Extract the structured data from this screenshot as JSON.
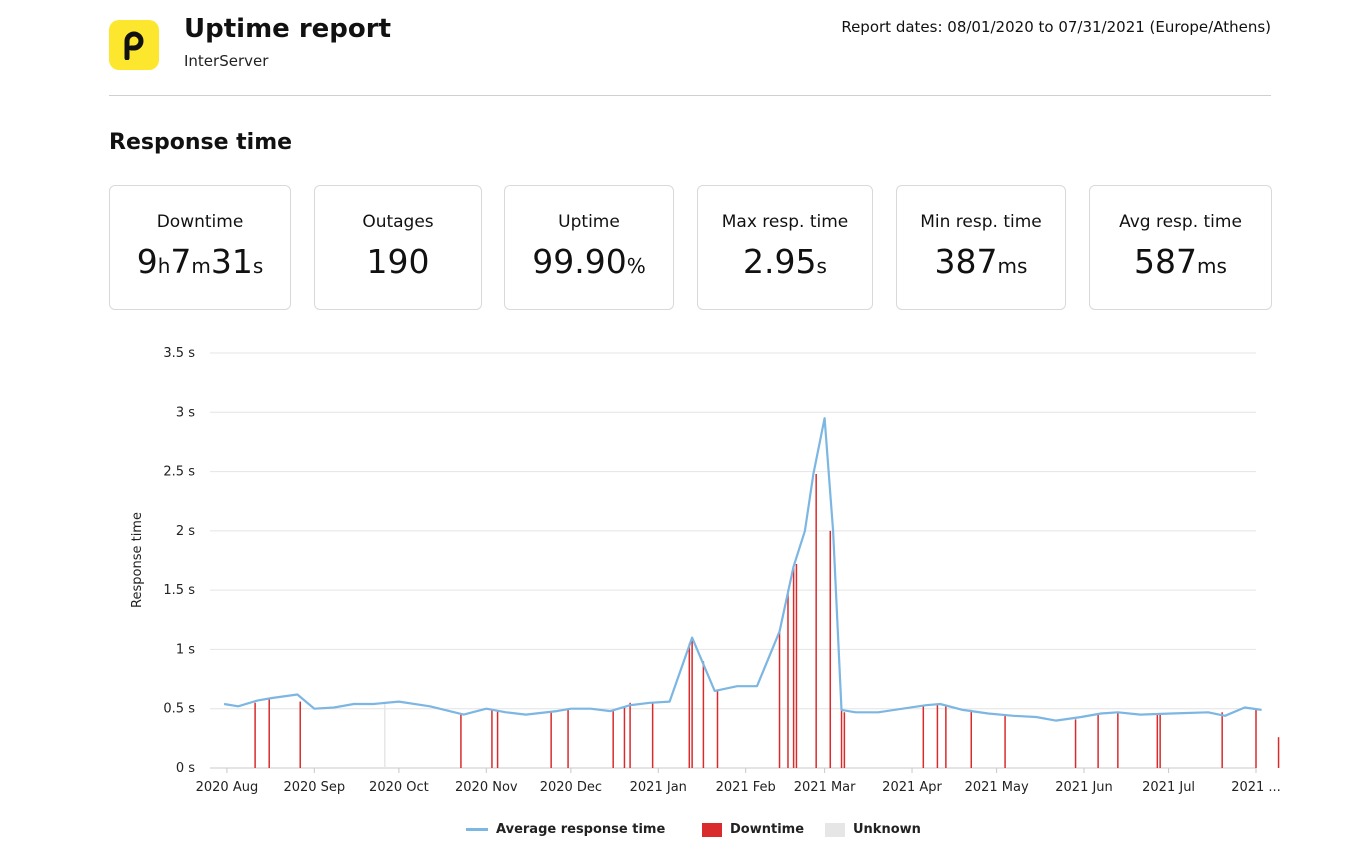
{
  "header": {
    "title": "Uptime report",
    "subtitle": "InterServer",
    "dates": "Report dates: 08/01/2020 to 07/31/2021 (Europe/Athens)"
  },
  "section_title": "Response time",
  "stats": [
    {
      "label": "Downtime",
      "value_parts": [
        [
          "9",
          ""
        ],
        [
          "h",
          "u"
        ],
        [
          "7",
          ""
        ],
        [
          "m",
          "u"
        ],
        [
          "31",
          ""
        ],
        [
          "s",
          "u"
        ]
      ]
    },
    {
      "label": "Outages",
      "value_parts": [
        [
          "190",
          ""
        ]
      ]
    },
    {
      "label": "Uptime",
      "value_parts": [
        [
          "99.90",
          ""
        ],
        [
          "%",
          "u"
        ]
      ]
    },
    {
      "label": "Max resp. time",
      "value_parts": [
        [
          "2.95",
          ""
        ],
        [
          "s",
          "u"
        ]
      ]
    },
    {
      "label": "Min resp. time",
      "value_parts": [
        [
          "387",
          ""
        ],
        [
          "ms",
          "u"
        ]
      ]
    },
    {
      "label": "Avg resp. time",
      "value_parts": [
        [
          "587",
          ""
        ],
        [
          "ms",
          "u"
        ]
      ]
    }
  ],
  "colors": {
    "logo": "#fde72e",
    "line": "#7cb6e3",
    "downtime": "#d92b2b",
    "unknown": "#e6e6e6",
    "grid": "#e4e4e4"
  },
  "chart_data": {
    "type": "line",
    "ylabel": "Response time",
    "ylim": [
      0,
      3.5
    ],
    "yticks": [
      0,
      0.5,
      1,
      1.5,
      2,
      2.5,
      3,
      3.5
    ],
    "ytick_labels": [
      "0 s",
      "0.5 s",
      "1 s",
      "1.5 s",
      "2 s",
      "2.5 s",
      "3 s",
      "3.5 s"
    ],
    "xlim": [
      "2020-07-26",
      "2021-08-01"
    ],
    "xtick_labels": [
      {
        "date": "2020-08-01",
        "label": "2020 Aug"
      },
      {
        "date": "2020-09-01",
        "label": "2020 Sep"
      },
      {
        "date": "2020-10-01",
        "label": "2020 Oct"
      },
      {
        "date": "2020-11-01",
        "label": "2020 Nov"
      },
      {
        "date": "2020-12-01",
        "label": "2020 Dec"
      },
      {
        "date": "2021-01-01",
        "label": "2021 Jan"
      },
      {
        "date": "2021-02-01",
        "label": "2021 Feb"
      },
      {
        "date": "2021-03-01",
        "label": "2021 Mar"
      },
      {
        "date": "2021-04-01",
        "label": "2021 Apr"
      },
      {
        "date": "2021-05-01",
        "label": "2021 May"
      },
      {
        "date": "2021-06-01",
        "label": "2021 Jun"
      },
      {
        "date": "2021-07-01",
        "label": "2021 Jul"
      },
      {
        "date": "2021-08-01",
        "label": "2021 ..."
      }
    ],
    "series": [
      {
        "name": "Average response time",
        "points": [
          [
            "2020-07-31",
            0.54
          ],
          [
            "2020-08-05",
            0.52
          ],
          [
            "2020-08-12",
            0.57
          ],
          [
            "2020-08-17",
            0.59
          ],
          [
            "2020-08-26",
            0.62
          ],
          [
            "2020-09-01",
            0.5
          ],
          [
            "2020-09-08",
            0.51
          ],
          [
            "2020-09-15",
            0.54
          ],
          [
            "2020-09-22",
            0.54
          ],
          [
            "2020-10-01",
            0.56
          ],
          [
            "2020-10-12",
            0.52
          ],
          [
            "2020-10-24",
            0.45
          ],
          [
            "2020-11-01",
            0.5
          ],
          [
            "2020-11-08",
            0.47
          ],
          [
            "2020-11-15",
            0.45
          ],
          [
            "2020-11-26",
            0.48
          ],
          [
            "2020-12-01",
            0.5
          ],
          [
            "2020-12-08",
            0.5
          ],
          [
            "2020-12-15",
            0.48
          ],
          [
            "2020-12-22",
            0.53
          ],
          [
            "2020-12-29",
            0.55
          ],
          [
            "2021-01-05",
            0.56
          ],
          [
            "2021-01-13",
            1.1
          ],
          [
            "2021-01-21",
            0.65
          ],
          [
            "2021-01-29",
            0.69
          ],
          [
            "2021-02-05",
            0.69
          ],
          [
            "2021-02-13",
            1.15
          ],
          [
            "2021-02-18",
            1.7
          ],
          [
            "2021-02-22",
            2.0
          ],
          [
            "2021-02-25",
            2.48
          ],
          [
            "2021-03-01",
            2.95
          ],
          [
            "2021-03-04",
            2.0
          ],
          [
            "2021-03-07",
            0.49
          ],
          [
            "2021-03-12",
            0.47
          ],
          [
            "2021-03-20",
            0.47
          ],
          [
            "2021-04-06",
            0.53
          ],
          [
            "2021-04-11",
            0.54
          ],
          [
            "2021-04-19",
            0.49
          ],
          [
            "2021-04-28",
            0.46
          ],
          [
            "2021-05-07",
            0.44
          ],
          [
            "2021-05-15",
            0.43
          ],
          [
            "2021-05-22",
            0.4
          ],
          [
            "2021-05-31",
            0.43
          ],
          [
            "2021-06-07",
            0.46
          ],
          [
            "2021-06-13",
            0.47
          ],
          [
            "2021-06-21",
            0.45
          ],
          [
            "2021-07-02",
            0.46
          ],
          [
            "2021-07-15",
            0.47
          ],
          [
            "2021-07-21",
            0.44
          ],
          [
            "2021-07-28",
            0.51
          ],
          [
            "2021-08-03",
            0.49
          ]
        ]
      },
      {
        "name": "Downtime",
        "bars": [
          [
            "2020-08-11",
            0.55
          ],
          [
            "2020-08-16",
            0.58
          ],
          [
            "2020-08-27",
            0.56
          ],
          [
            "2020-10-23",
            0.46
          ],
          [
            "2020-11-03",
            0.49
          ],
          [
            "2020-11-05",
            0.48
          ],
          [
            "2020-11-24",
            0.48
          ],
          [
            "2020-11-30",
            0.5
          ],
          [
            "2020-12-16",
            0.48
          ],
          [
            "2020-12-20",
            0.52
          ],
          [
            "2020-12-22",
            0.55
          ],
          [
            "2020-12-30",
            0.55
          ],
          [
            "2021-01-12",
            1.05
          ],
          [
            "2021-01-13",
            1.1
          ],
          [
            "2021-01-17",
            0.9
          ],
          [
            "2021-01-22",
            0.65
          ],
          [
            "2021-02-13",
            1.15
          ],
          [
            "2021-02-16",
            1.5
          ],
          [
            "2021-02-18",
            1.7
          ],
          [
            "2021-02-19",
            1.72
          ],
          [
            "2021-02-26",
            2.48
          ],
          [
            "2021-03-03",
            2.0
          ],
          [
            "2021-03-07",
            0.49
          ],
          [
            "2021-03-08",
            0.47
          ],
          [
            "2021-04-05",
            0.53
          ],
          [
            "2021-04-10",
            0.54
          ],
          [
            "2021-04-13",
            0.53
          ],
          [
            "2021-04-22",
            0.49
          ],
          [
            "2021-05-04",
            0.45
          ],
          [
            "2021-05-29",
            0.41
          ],
          [
            "2021-06-06",
            0.45
          ],
          [
            "2021-06-13",
            0.47
          ],
          [
            "2021-06-27",
            0.45
          ],
          [
            "2021-06-28",
            0.45
          ],
          [
            "2021-07-20",
            0.47
          ],
          [
            "2021-08-01",
            0.5
          ],
          [
            "2021-08-09",
            0.26
          ]
        ]
      },
      {
        "name": "Unknown",
        "bars": [
          [
            "2020-09-26",
            0.54
          ]
        ]
      }
    ]
  }
}
